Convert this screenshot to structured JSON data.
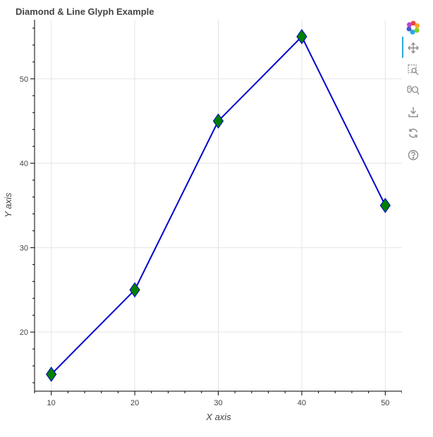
{
  "chart_data": {
    "type": "line",
    "title": "Diamond & Line Glyph Example",
    "xlabel": "X axis",
    "ylabel": "Y axis",
    "x": [
      10,
      20,
      30,
      40,
      50
    ],
    "series": [
      {
        "values": [
          15,
          25,
          45,
          55,
          35
        ],
        "line_color": "#0000cd",
        "marker": "diamond",
        "marker_fill": "#008000",
        "marker_line": "#0000cd"
      }
    ],
    "xlim": [
      8,
      52
    ],
    "ylim": [
      13,
      57
    ],
    "xticks": [
      10,
      20,
      30,
      40,
      50
    ],
    "yticks": [
      20,
      30,
      40,
      50
    ],
    "grid": true,
    "legend": "none"
  },
  "toolbar": {
    "tools": [
      {
        "name": "bokeh-logo-icon"
      },
      {
        "name": "pan-icon"
      },
      {
        "name": "box-zoom-icon"
      },
      {
        "name": "wheel-zoom-icon"
      },
      {
        "name": "save-icon"
      },
      {
        "name": "reset-icon"
      },
      {
        "name": "help-icon"
      }
    ]
  }
}
